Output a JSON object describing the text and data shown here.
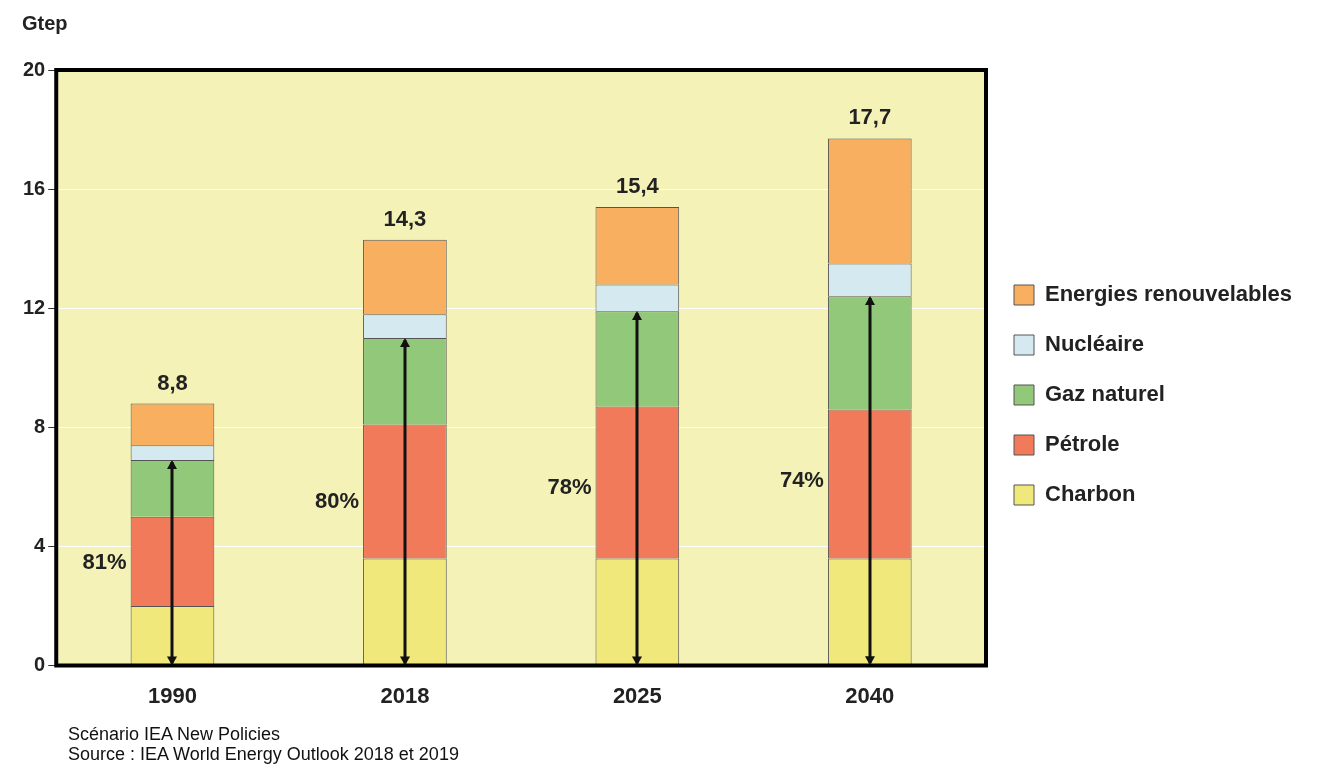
{
  "chart_data": {
    "type": "bar",
    "stacked": true,
    "ylabel": "Gtep",
    "categories": [
      "1990",
      "2018",
      "2025",
      "2040"
    ],
    "series": [
      {
        "name": "Charbon",
        "color": "#f0e87a",
        "values": [
          2.0,
          3.6,
          3.6,
          3.6
        ]
      },
      {
        "name": "Pétrole",
        "color": "#f07a5a",
        "values": [
          3.0,
          4.5,
          5.1,
          5.0
        ]
      },
      {
        "name": "Gaz naturel",
        "color": "#92c87a",
        "values": [
          1.9,
          2.9,
          3.2,
          3.8
        ]
      },
      {
        "name": "Nucléaire",
        "color": "#d4eaf0",
        "values": [
          0.5,
          0.8,
          0.9,
          1.1
        ]
      },
      {
        "name": "Energies renouvelables",
        "color": "#f8b060",
        "values": [
          1.4,
          2.5,
          2.6,
          4.2
        ]
      }
    ],
    "totals": [
      "8,8",
      "14,3",
      "15,4",
      "17,7"
    ],
    "ylim": [
      0,
      20
    ],
    "yticks": [
      0,
      4,
      8,
      12,
      16,
      20
    ],
    "grid": "y",
    "legend": "right",
    "annotations": [
      "81%",
      "80%",
      "78%",
      "74%",
      "Scénario IEA New Policies",
      "Source : IEA World Energy Outlook 2018 et 2019"
    ]
  }
}
